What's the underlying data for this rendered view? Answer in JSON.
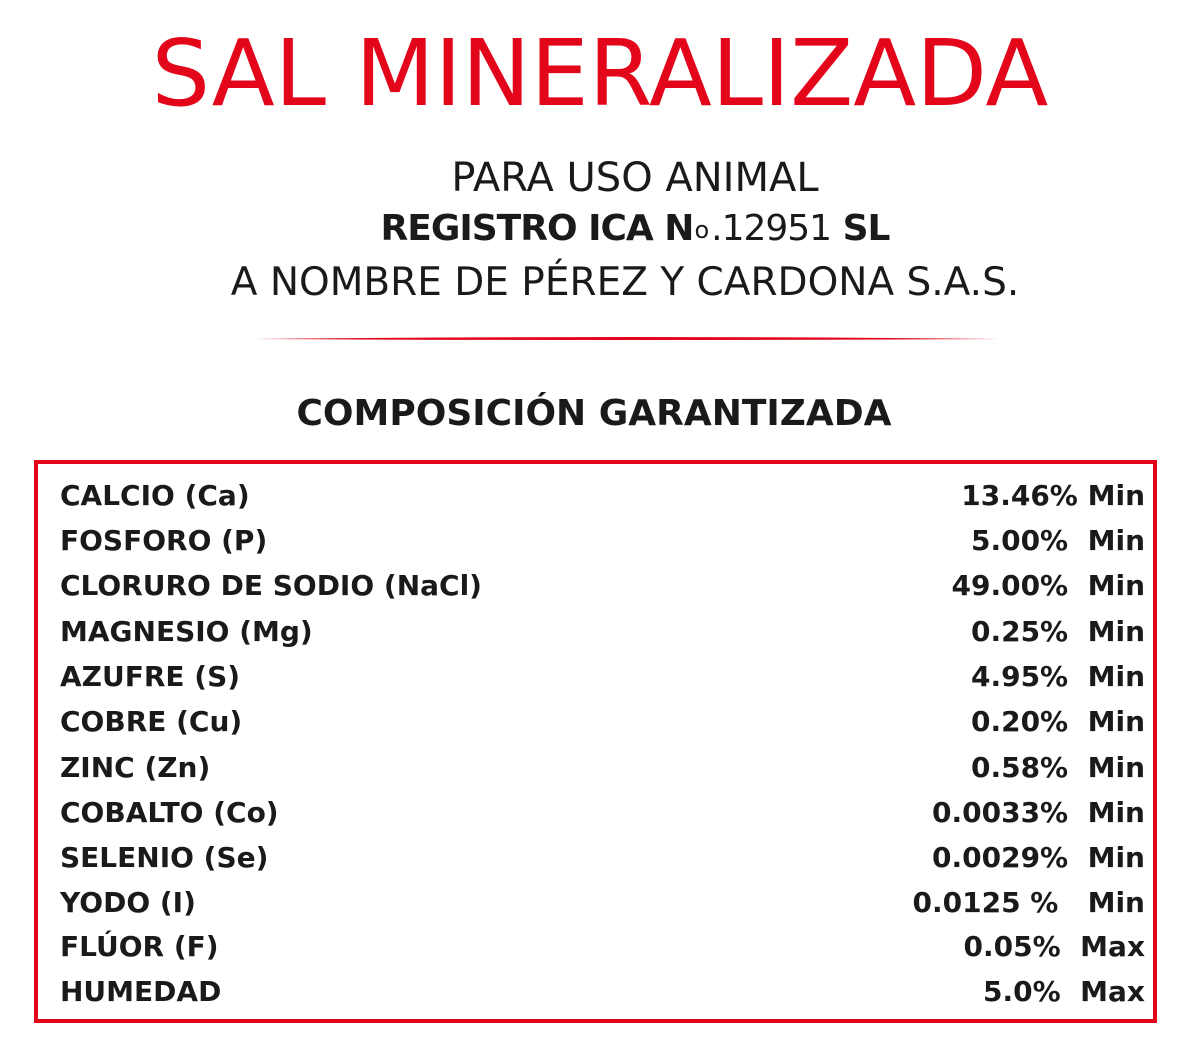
{
  "header": {
    "title": "SAL MINERALIZADA",
    "subtitle": "PARA USO ANIMAL",
    "registro_label": "REGISTRO ICA N",
    "registro_o": "o",
    "registro_number": ".12951",
    "registro_suffix": " SL",
    "owner": "A NOMBRE DE PÉREZ Y CARDONA S.A.S."
  },
  "composition": {
    "heading": "COMPOSICIÓN GARANTIZADA",
    "rows": [
      {
        "name": "CALCIO (Ca)",
        "value": "13.46% Min"
      },
      {
        "name": "FOSFORO (P)",
        "value": "5.00%  Min"
      },
      {
        "name": "CLORURO DE SODIO (NaCl)",
        "value": "49.00%  Min"
      },
      {
        "name": "MAGNESIO (Mg)",
        "value": "0.25%  Min"
      },
      {
        "name": "AZUFRE (S)",
        "value": "4.95%  Min"
      },
      {
        "name": "COBRE (Cu)",
        "value": "0.20%  Min"
      },
      {
        "name": "ZINC (Zn)",
        "value": "0.58%  Min"
      },
      {
        "name": "COBALTO (Co)",
        "value": "0.0033%  Min"
      },
      {
        "name": "SELENIO (Se)",
        "value": "0.0029%  Min"
      },
      {
        "name": "YODO (I)",
        "value": "0.0125 %   Min"
      },
      {
        "name": "FLÚOR (F)",
        "value": "0.05%  Max"
      },
      {
        "name": "HUMEDAD",
        "value": "5.0%  Max"
      }
    ]
  },
  "colors": {
    "accent": "#e3061b",
    "text": "#1a1a1a"
  }
}
